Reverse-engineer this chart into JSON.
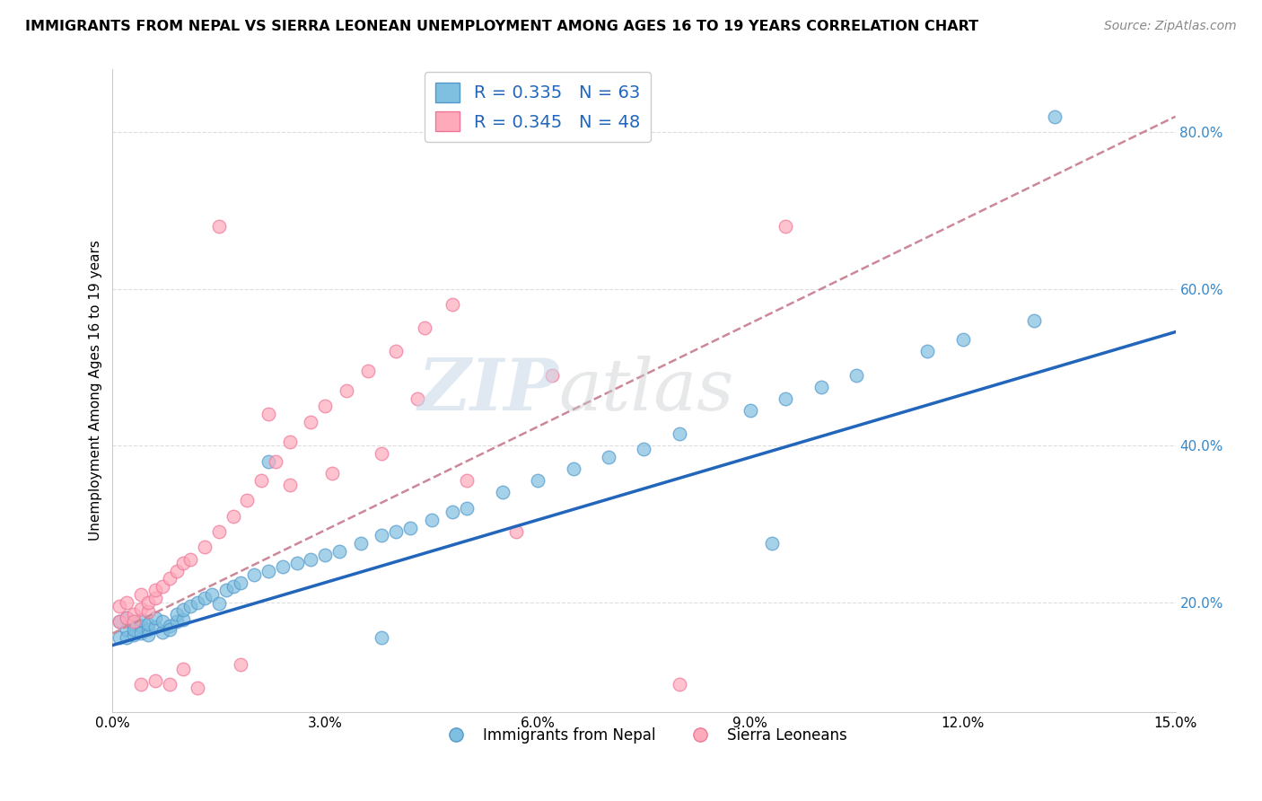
{
  "title": "IMMIGRANTS FROM NEPAL VS SIERRA LEONEAN UNEMPLOYMENT AMONG AGES 16 TO 19 YEARS CORRELATION CHART",
  "source": "Source: ZipAtlas.com",
  "ylabel": "Unemployment Among Ages 16 to 19 years",
  "xlim": [
    0.0,
    0.15
  ],
  "ylim": [
    0.06,
    0.88
  ],
  "xticks": [
    0.0,
    0.03,
    0.06,
    0.09,
    0.12,
    0.15
  ],
  "xticklabels": [
    "0.0%",
    "3.0%",
    "6.0%",
    "9.0%",
    "12.0%",
    "15.0%"
  ],
  "yticks": [
    0.2,
    0.4,
    0.6,
    0.8
  ],
  "yticklabels": [
    "20.0%",
    "40.0%",
    "60.0%",
    "80.0%"
  ],
  "nepal_color": "#7fbfdf",
  "nepal_edge": "#5599cc",
  "sierra_color": "#ffaabb",
  "sierra_edge": "#ee7799",
  "nepal_R": 0.335,
  "nepal_N": 63,
  "sierra_R": 0.345,
  "sierra_N": 48,
  "legend_label_nepal": "Immigrants from Nepal",
  "legend_label_sierra": "Sierra Leoneans",
  "watermark_zip": "ZIP",
  "watermark_atlas": "atlas",
  "nepal_trend_x": [
    0.0,
    0.15
  ],
  "nepal_trend_y": [
    0.145,
    0.545
  ],
  "sierra_trend_x": [
    0.0,
    0.15
  ],
  "sierra_trend_y": [
    0.16,
    0.82
  ],
  "grid_color": "#dddddd",
  "trend_nepal_color": "#2266bb",
  "trend_sierra_color": "#cc8899",
  "nepal_scatter_x": [
    0.001,
    0.001,
    0.002,
    0.002,
    0.002,
    0.003,
    0.003,
    0.003,
    0.004,
    0.004,
    0.004,
    0.005,
    0.005,
    0.005,
    0.006,
    0.006,
    0.007,
    0.007,
    0.008,
    0.008,
    0.009,
    0.009,
    0.01,
    0.01,
    0.011,
    0.012,
    0.013,
    0.014,
    0.015,
    0.016,
    0.017,
    0.018,
    0.02,
    0.022,
    0.024,
    0.026,
    0.028,
    0.03,
    0.032,
    0.035,
    0.038,
    0.04,
    0.042,
    0.045,
    0.048,
    0.05,
    0.055,
    0.06,
    0.065,
    0.07,
    0.075,
    0.08,
    0.09,
    0.095,
    0.1,
    0.105,
    0.115,
    0.12,
    0.13,
    0.133,
    0.022,
    0.038,
    0.093
  ],
  "nepal_scatter_y": [
    0.155,
    0.175,
    0.165,
    0.155,
    0.18,
    0.158,
    0.172,
    0.165,
    0.17,
    0.16,
    0.178,
    0.165,
    0.158,
    0.172,
    0.168,
    0.18,
    0.162,
    0.175,
    0.17,
    0.165,
    0.175,
    0.185,
    0.178,
    0.19,
    0.195,
    0.2,
    0.205,
    0.21,
    0.198,
    0.215,
    0.22,
    0.225,
    0.235,
    0.24,
    0.245,
    0.25,
    0.255,
    0.26,
    0.265,
    0.275,
    0.285,
    0.29,
    0.295,
    0.305,
    0.315,
    0.32,
    0.34,
    0.355,
    0.37,
    0.385,
    0.395,
    0.415,
    0.445,
    0.46,
    0.475,
    0.49,
    0.52,
    0.535,
    0.56,
    0.82,
    0.38,
    0.155,
    0.275
  ],
  "sierra_scatter_x": [
    0.001,
    0.001,
    0.002,
    0.002,
    0.003,
    0.003,
    0.004,
    0.004,
    0.005,
    0.005,
    0.006,
    0.006,
    0.007,
    0.008,
    0.009,
    0.01,
    0.011,
    0.013,
    0.015,
    0.017,
    0.019,
    0.021,
    0.023,
    0.025,
    0.028,
    0.03,
    0.033,
    0.036,
    0.04,
    0.044,
    0.048,
    0.022,
    0.015,
    0.025,
    0.031,
    0.038,
    0.043,
    0.05,
    0.057,
    0.062,
    0.004,
    0.006,
    0.008,
    0.01,
    0.012,
    0.018,
    0.08,
    0.095
  ],
  "sierra_scatter_y": [
    0.175,
    0.195,
    0.18,
    0.2,
    0.185,
    0.175,
    0.192,
    0.21,
    0.188,
    0.2,
    0.205,
    0.215,
    0.22,
    0.23,
    0.24,
    0.25,
    0.255,
    0.27,
    0.29,
    0.31,
    0.33,
    0.355,
    0.38,
    0.405,
    0.43,
    0.45,
    0.47,
    0.495,
    0.52,
    0.55,
    0.58,
    0.44,
    0.68,
    0.35,
    0.365,
    0.39,
    0.46,
    0.355,
    0.29,
    0.49,
    0.095,
    0.1,
    0.095,
    0.115,
    0.09,
    0.12,
    0.095,
    0.68
  ]
}
